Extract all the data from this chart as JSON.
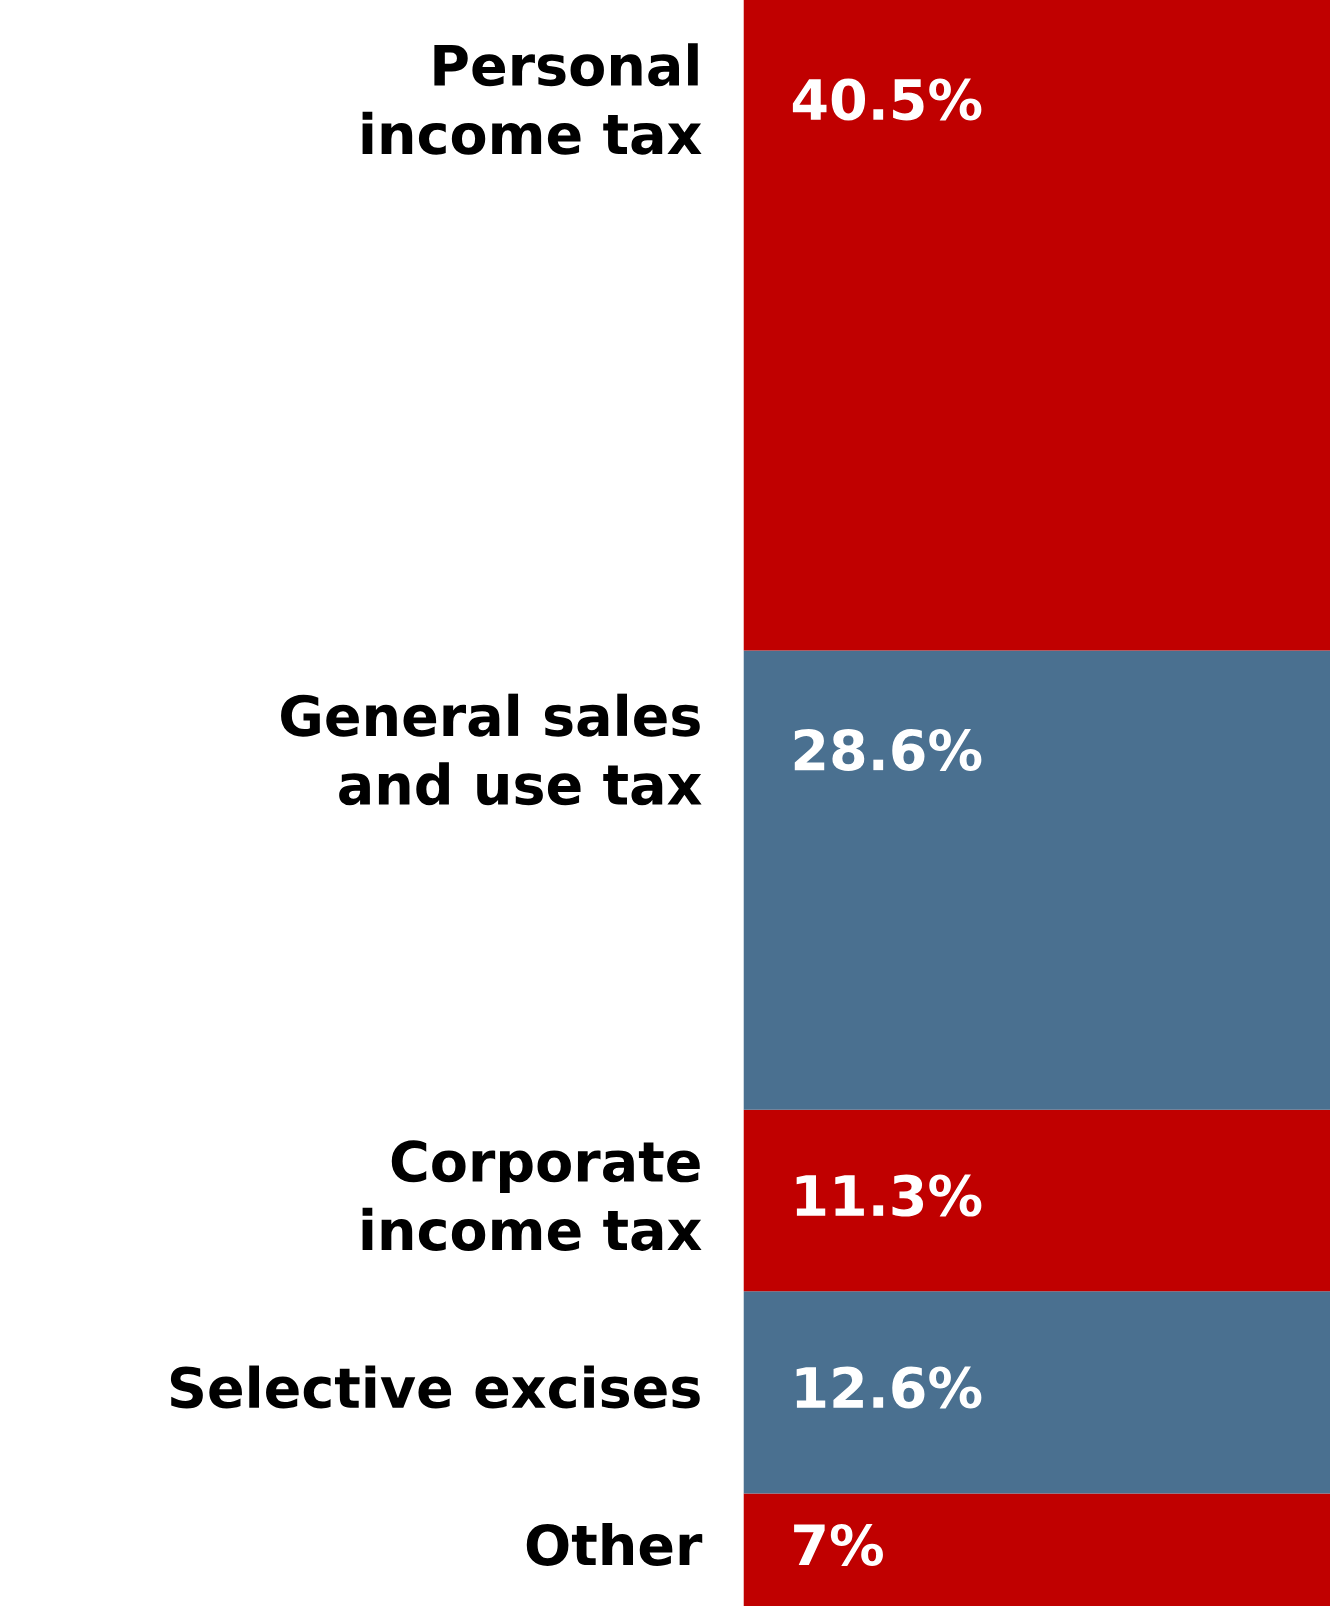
{
  "chart_data": {
    "type": "bar",
    "stacked": true,
    "categories": [
      null
    ],
    "ylim": [
      0,
      100
    ],
    "tick_labels": false,
    "series": [
      {
        "name": "Other",
        "color": "#c00000",
        "values": [
          7
        ],
        "value_labels": [
          "7%"
        ]
      },
      {
        "name": "Selective excises",
        "color": "#4a7090",
        "values": [
          12.6
        ],
        "value_labels": [
          "12.6%"
        ]
      },
      {
        "name": "Corporate\nincome tax",
        "color": "#c00000",
        "values": [
          11.3
        ],
        "value_labels": [
          "11.3%"
        ]
      },
      {
        "name": "General sales\nand use tax",
        "color": "#4a7090",
        "values": [
          28.6
        ],
        "value_labels": [
          "28.6%"
        ]
      },
      {
        "name": "Personal\nincome tax",
        "color": "#c00000",
        "values": [
          40.5
        ],
        "value_labels": [
          "40.5%"
        ]
      }
    ]
  }
}
